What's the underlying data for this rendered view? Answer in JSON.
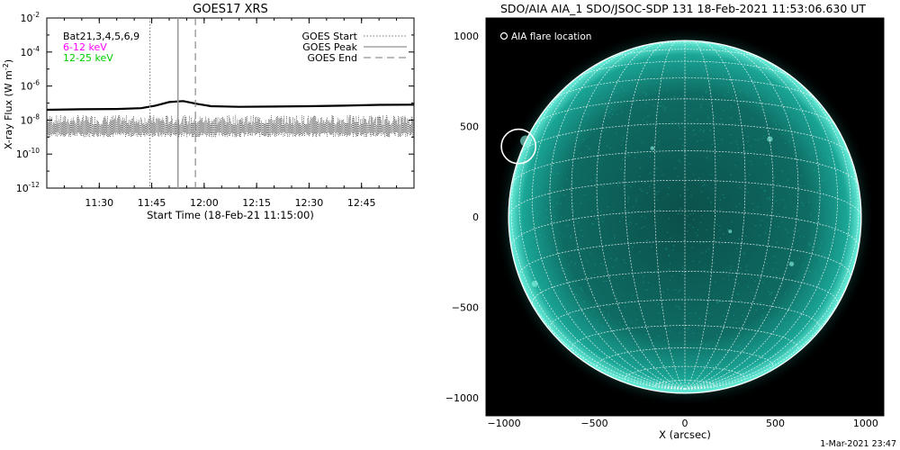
{
  "footer_timestamp": "1-Mar-2021 23:47",
  "chart_data": [
    {
      "type": "line",
      "title": "GOES17 XRS",
      "xlabel": "Start Time (18-Feb-21 11:15:00)",
      "ylabel": "X-ray Flux (W m",
      "ylabel_sup": "-2",
      "ylabel_close": ")",
      "y_scale": "log",
      "ylim": [
        1e-12,
        0.01
      ],
      "xlim": [
        "11:15",
        "13:00"
      ],
      "y_ticks": [
        {
          "base": "10",
          "exp": "-12",
          "value": 1e-12
        },
        {
          "base": "10",
          "exp": "-10",
          "value": 1e-10
        },
        {
          "base": "10",
          "exp": "-8",
          "value": 1e-08
        },
        {
          "base": "10",
          "exp": "-6",
          "value": 1e-06
        },
        {
          "base": "10",
          "exp": "-4",
          "value": 0.0001
        },
        {
          "base": "10",
          "exp": "-2",
          "value": 0.01
        }
      ],
      "x_ticks": [
        {
          "label": "11:30",
          "t": "11:30"
        },
        {
          "label": "11:45",
          "t": "11:45"
        },
        {
          "label": "12:00",
          "t": "12:00"
        },
        {
          "label": "12:15",
          "t": "12:15"
        },
        {
          "label": "12:30",
          "t": "12:30"
        },
        {
          "label": "12:45",
          "t": "12:45"
        }
      ],
      "legend_left": [
        {
          "text": "Bat21,3,4,5,6,9",
          "color": "#000000"
        },
        {
          "text": "6-12 keV",
          "color": "#ff00ff"
        },
        {
          "text": "12-25 keV",
          "color": "#00cc00"
        }
      ],
      "legend_right": [
        {
          "text": "GOES Start",
          "style": "dotted"
        },
        {
          "text": "GOES Peak",
          "style": "solid"
        },
        {
          "text": "GOES End",
          "style": "dashed"
        }
      ],
      "event_lines": [
        {
          "name": "GOES Start",
          "t": "11:44.5",
          "style": "dotted"
        },
        {
          "name": "GOES Peak",
          "t": "11:52.5",
          "style": "solid"
        },
        {
          "name": "GOES End",
          "t": "11:57.5",
          "style": "dashed"
        }
      ],
      "series": [
        {
          "name": "",
          "color": "#000000",
          "points": [
            [
              "11:15",
              4e-08
            ],
            [
              "11:25",
              4.3e-08
            ],
            [
              "11:35",
              4.5e-08
            ],
            [
              "11:42",
              5e-08
            ],
            [
              "11:46",
              7e-08
            ],
            [
              "11:50",
              1.15e-07
            ],
            [
              "11:54",
              1.3e-07
            ],
            [
              "11:58",
              9e-08
            ],
            [
              "12:02",
              6.5e-08
            ],
            [
              "12:10",
              6e-08
            ],
            [
              "12:20",
              6.2e-08
            ],
            [
              "12:30",
              6.5e-08
            ],
            [
              "12:40",
              7e-08
            ],
            [
              "12:50",
              7.8e-08
            ],
            [
              "13:00",
              8e-08
            ]
          ]
        },
        {
          "name": "",
          "color": "#000000",
          "style": "noise",
          "range": [
            1e-09,
            2e-08
          ]
        }
      ]
    },
    {
      "type": "scatter",
      "title": "SDO/AIA AIA_1 SDO/JSOC-SDP 131 18-Feb-2021 11:53:06.630 UT",
      "xlabel": "X (arcsec)",
      "ylabel": "",
      "xlim": [
        -1100,
        1100
      ],
      "ylim": [
        -1100,
        1100
      ],
      "x_ticks": [
        -1000,
        -500,
        0,
        500,
        1000
      ],
      "y_ticks": [
        -1000,
        -500,
        0,
        500,
        1000
      ],
      "solar_radius_arcsec": 975,
      "grid_spacing_deg": 10,
      "disk_color": "#0f8a80",
      "limb_color": "#5ff0dc",
      "legend": "AIA flare location",
      "flare_location": {
        "x": -920,
        "y": 390,
        "radius": 95
      }
    }
  ]
}
